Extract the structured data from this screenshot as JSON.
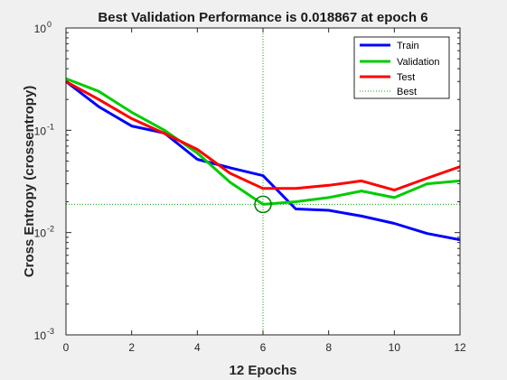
{
  "chart_data": {
    "type": "line",
    "title": "Best Validation Performance is 0.018867 at epoch 6",
    "xlabel": "12 Epochs",
    "ylabel": "Cross Entropy  (crossentropy)",
    "xlim": [
      0,
      12
    ],
    "ylim": [
      0.001,
      1
    ],
    "yscale": "log",
    "grid": false,
    "legend_position": "top-right",
    "x_ticks": [
      "0",
      "2",
      "4",
      "6",
      "8",
      "10",
      "12"
    ],
    "y_ticks": [
      {
        "base": "10",
        "exp": "0",
        "value": 1
      },
      {
        "base": "10",
        "exp": "-1",
        "value": 0.1
      },
      {
        "base": "10",
        "exp": "-2",
        "value": 0.01
      },
      {
        "base": "10",
        "exp": "-3",
        "value": 0.001
      }
    ],
    "x": [
      0,
      1,
      2,
      3,
      4,
      5,
      6,
      7,
      8,
      9,
      10,
      11,
      12
    ],
    "series": [
      {
        "name": "Train",
        "color": "#0000ff",
        "style": "solid",
        "values": [
          0.3,
          0.17,
          0.11,
          0.094,
          0.052,
          0.043,
          0.036,
          0.017,
          0.0165,
          0.0145,
          0.0123,
          0.0098,
          0.0085
        ]
      },
      {
        "name": "Validation",
        "color": "#00cc00",
        "style": "solid",
        "values": [
          0.32,
          0.24,
          0.15,
          0.1,
          0.06,
          0.031,
          0.018867,
          0.02,
          0.022,
          0.0255,
          0.022,
          0.03,
          0.032
        ]
      },
      {
        "name": "Test",
        "color": "#ff0000",
        "style": "solid",
        "values": [
          0.3,
          0.2,
          0.13,
          0.093,
          0.065,
          0.038,
          0.027,
          0.027,
          0.029,
          0.032,
          0.026,
          0.034,
          0.044
        ]
      }
    ],
    "best": {
      "name": "Best",
      "color": "#00aa00",
      "style": "dotted",
      "epoch": 6,
      "value": 0.018867
    }
  }
}
